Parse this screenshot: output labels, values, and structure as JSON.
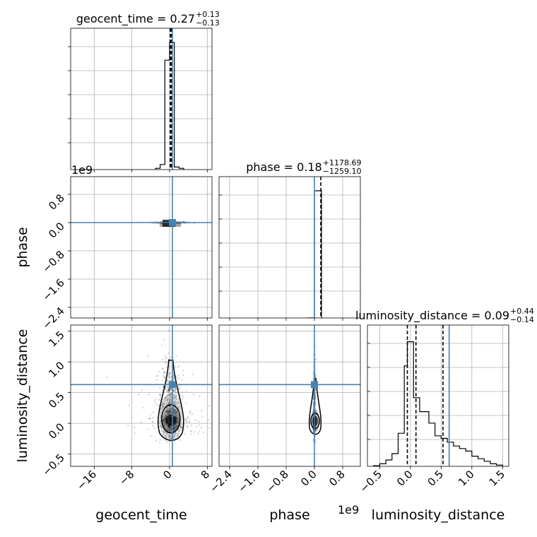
{
  "chart_data": {
    "type": "corner",
    "parameters": [
      "geocent_time",
      "phase",
      "luminosity_distance"
    ],
    "axis_labels": {
      "geocent_time": "geocent_time",
      "phase": "phase",
      "luminosity_distance": "luminosity_distance"
    },
    "ranges": {
      "geocent_time": [
        -21,
        9
      ],
      "phase": [
        -2.7,
        1.3
      ],
      "luminosity_distance": [
        -0.7,
        1.6
      ]
    },
    "offset_labels": {
      "phase_y": "1e9",
      "phase_x": "1e9"
    },
    "ticks": {
      "geocent_time": {
        "values": [
          -16,
          -8,
          0,
          8
        ],
        "labels": [
          "−16",
          "−8",
          "0",
          "8"
        ]
      },
      "phase": {
        "values": [
          -2.4,
          -1.6,
          -0.8,
          0.0,
          0.8
        ],
        "labels": [
          "−2.4",
          "−1.6",
          "−0.8",
          "0.0",
          "0.8"
        ]
      },
      "luminosity_distance": {
        "values": [
          -0.5,
          0.0,
          0.5,
          1.0,
          1.5
        ],
        "labels": [
          "−0.5",
          "0.0",
          "0.5",
          "1.0",
          "1.5"
        ]
      }
    },
    "titles": [
      {
        "param": "geocent_time",
        "text": "geocent_time = 0.27",
        "sup": "+0.13",
        "sub": "−0.13"
      },
      {
        "param": "phase",
        "text": "phase = 0.18",
        "sup": "+1178.69",
        "sub": "−1259.10"
      },
      {
        "param": "luminosity_distance",
        "text": "luminosity_distance = 0.09",
        "sup": "+0.44",
        "sub": "−0.14"
      }
    ],
    "truths": {
      "geocent_time": 0.6,
      "phase": 0.0,
      "luminosity_distance": 0.63
    },
    "quantiles": {
      "geocent_time": [
        0.14,
        0.27,
        0.4
      ],
      "phase": [
        -1259,
        0.18,
        1179
      ],
      "luminosity_distance": [
        -0.05,
        0.09,
        0.53
      ]
    },
    "histograms": {
      "geocent_time": {
        "edges": [
          -3,
          -2,
          -1,
          0,
          1,
          2,
          3
        ],
        "counts": [
          0.01,
          0.04,
          0.86,
          1.0,
          0.02,
          0.01
        ]
      },
      "phase": {
        "edges": [
          -0.2,
          0.0,
          0.2
        ],
        "counts": [
          0.0,
          1.0
        ]
      },
      "luminosity_distance": {
        "edges": [
          -0.6,
          -0.5,
          -0.4,
          -0.3,
          -0.2,
          -0.1,
          -0.05,
          0.05,
          0.15,
          0.3,
          0.4,
          0.5,
          0.6,
          0.7,
          0.8,
          0.9,
          1.0,
          1.1,
          1.2,
          1.3,
          1.4,
          1.5
        ],
        "counts": [
          0.005,
          0.02,
          0.05,
          0.1,
          0.26,
          0.79,
          0.98,
          0.54,
          0.43,
          0.34,
          0.24,
          0.22,
          0.19,
          0.16,
          0.14,
          0.12,
          0.08,
          0.06,
          0.04,
          0.02,
          0.01
        ]
      }
    },
    "grid": true
  }
}
